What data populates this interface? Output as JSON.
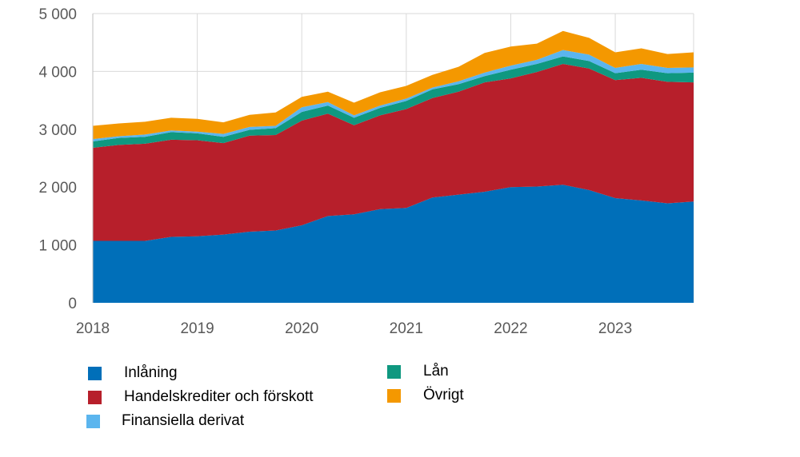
{
  "chart_data": {
    "type": "area",
    "stacked": true,
    "title": "",
    "xlabel": "",
    "ylabel": "",
    "ylim": [
      0,
      5000
    ],
    "yticks": [
      "0",
      "1 000",
      "2 000",
      "3 000",
      "4 000",
      "5 000"
    ],
    "ytick_values": [
      0,
      1000,
      2000,
      3000,
      4000,
      5000
    ],
    "xticks": [
      "2018",
      "2019",
      "2020",
      "2021",
      "2022",
      "2023"
    ],
    "grid": true,
    "legend_placement": "bottom",
    "x": [
      "2018Q1",
      "2018Q2",
      "2018Q3",
      "2018Q4",
      "2019Q1",
      "2019Q2",
      "2019Q3",
      "2019Q4",
      "2020Q1",
      "2020Q2",
      "2020Q3",
      "2020Q4",
      "2021Q1",
      "2021Q2",
      "2021Q3",
      "2021Q4",
      "2022Q1",
      "2022Q2",
      "2022Q3",
      "2022Q4",
      "2023Q1",
      "2023Q2",
      "2023Q3",
      "2023Q4"
    ],
    "series": [
      {
        "name": "Inlåning",
        "color": "#006FB9",
        "values": [
          1070,
          1070,
          1070,
          1140,
          1150,
          1180,
          1230,
          1250,
          1340,
          1500,
          1530,
          1620,
          1640,
          1820,
          1870,
          1920,
          2000,
          2010,
          2040,
          1950,
          1810,
          1770,
          1720,
          1750
        ]
      },
      {
        "name": "Handelskrediter och förskott",
        "color": "#B71F2B",
        "values": [
          1610,
          1660,
          1680,
          1680,
          1660,
          1580,
          1660,
          1650,
          1810,
          1770,
          1540,
          1620,
          1710,
          1720,
          1780,
          1890,
          1880,
          1980,
          2090,
          2100,
          2040,
          2120,
          2100,
          2060
        ]
      },
      {
        "name": "Lån",
        "color": "#0F9880",
        "values": [
          110,
          120,
          120,
          130,
          120,
          110,
          100,
          120,
          150,
          140,
          130,
          130,
          140,
          150,
          130,
          110,
          150,
          140,
          130,
          130,
          120,
          140,
          150,
          170
        ]
      },
      {
        "name": "Finansiella derivat",
        "color": "#5BB5EE",
        "values": [
          40,
          30,
          40,
          30,
          30,
          50,
          50,
          40,
          80,
          60,
          40,
          40,
          40,
          30,
          50,
          60,
          70,
          70,
          110,
          110,
          90,
          100,
          90,
          90
        ]
      },
      {
        "name": "Övrigt",
        "color": "#F49800",
        "values": [
          230,
          220,
          220,
          220,
          220,
          200,
          210,
          230,
          180,
          180,
          220,
          230,
          220,
          220,
          250,
          340,
          330,
          280,
          330,
          290,
          270,
          270,
          240,
          260
        ]
      }
    ]
  }
}
